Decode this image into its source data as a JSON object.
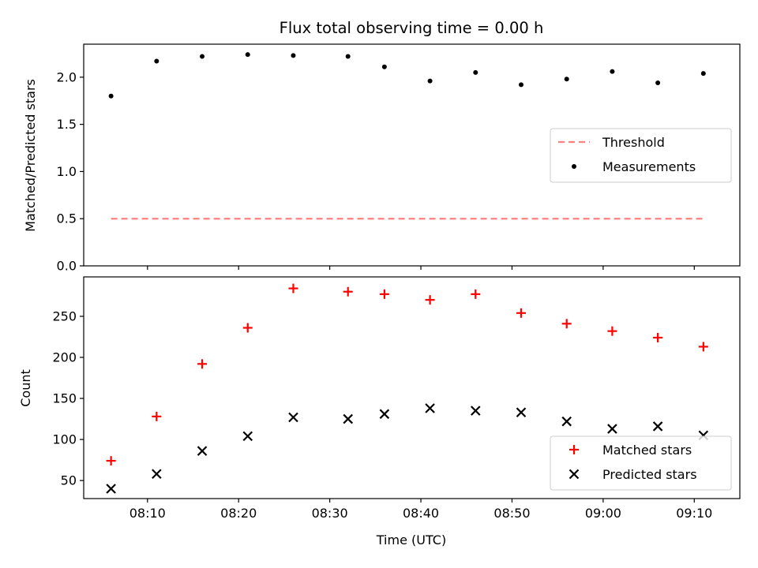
{
  "chart_data": {
    "title": "Flux total observing time = 0.00 h",
    "xlabel": "Time (UTC)",
    "x_tick_labels": [
      "08:10",
      "08:20",
      "08:30",
      "08:40",
      "08:50",
      "09:00",
      "09:10"
    ],
    "x_ticks": [
      "08:10",
      "08:20",
      "08:30",
      "08:40",
      "08:50",
      "09:00",
      "09:10"
    ],
    "x": [
      "08:06",
      "08:11",
      "08:16",
      "08:21",
      "08:26",
      "08:32",
      "08:36",
      "08:41",
      "08:46",
      "08:51",
      "08:56",
      "09:01",
      "09:06",
      "09:11"
    ],
    "xlim": [
      "08:03",
      "09:15"
    ],
    "panels": [
      {
        "type": "scatter",
        "ylabel": "Matched/Predicted stars",
        "ylim": [
          0.0,
          2.35
        ],
        "y_ticks": [
          0.0,
          0.5,
          1.0,
          1.5,
          2.0
        ],
        "y_tick_labels": [
          "0.0",
          "0.5",
          "1.0",
          "1.5",
          "2.0"
        ],
        "legend_position": "center-right",
        "series": [
          {
            "name": "Threshold",
            "kind": "dashed-line",
            "color": "#ff8080",
            "values": [
              0.5,
              0.5,
              0.5,
              0.5,
              0.5,
              0.5,
              0.5,
              0.5,
              0.5,
              0.5,
              0.5,
              0.5,
              0.5,
              0.5
            ]
          },
          {
            "name": "Measurements",
            "kind": "dot",
            "color": "#000000",
            "values": [
              1.8,
              2.17,
              2.22,
              2.24,
              2.23,
              2.22,
              2.11,
              1.96,
              2.05,
              1.92,
              1.98,
              2.06,
              1.94,
              2.04
            ]
          }
        ]
      },
      {
        "type": "scatter",
        "ylabel": "Count",
        "ylim": [
          28,
          298
        ],
        "y_ticks": [
          50,
          100,
          150,
          200,
          250
        ],
        "y_tick_labels": [
          "50",
          "100",
          "150",
          "200",
          "250"
        ],
        "legend_position": "lower-right",
        "series": [
          {
            "name": "Matched stars",
            "kind": "plus",
            "color": "#ff0000",
            "values": [
              74,
              128,
              192,
              236,
              284,
              280,
              277,
              270,
              277,
              254,
              241,
              232,
              224,
              213
            ]
          },
          {
            "name": "Predicted stars",
            "kind": "x",
            "color": "#000000",
            "values": [
              40,
              58,
              86,
              104,
              127,
              125,
              131,
              138,
              135,
              133,
              122,
              113,
              116,
              105
            ]
          }
        ]
      }
    ]
  }
}
